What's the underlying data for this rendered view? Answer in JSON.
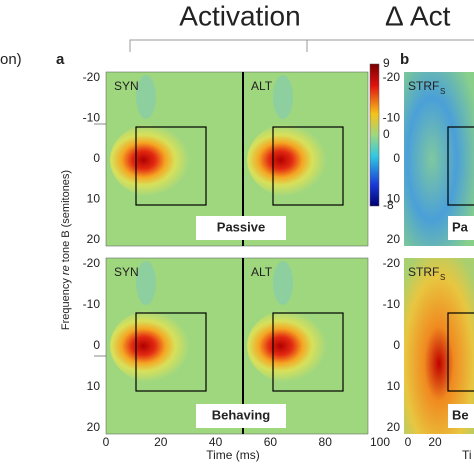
{
  "header": {
    "title": "Activation",
    "title_b": "Δ Act",
    "left_fragment": "on)"
  },
  "panel_a": {
    "label": "a",
    "rows": [
      {
        "condition": "Passive",
        "subpanels": [
          "SYN",
          "ALT"
        ]
      },
      {
        "condition": "Behaving",
        "subpanels": [
          "SYN",
          "ALT"
        ]
      }
    ],
    "y_ticks": [
      "-20",
      "-10",
      "0",
      "10",
      "20"
    ],
    "y_title": {
      "before": "Frequency ",
      "italic": "re",
      "after": " tone B (semitones)"
    },
    "x_ticks": [
      "0",
      "20",
      "40",
      "60",
      "80",
      "100"
    ],
    "x_title": "Time (ms)",
    "colorbar_ticks": [
      "9",
      "0",
      "-8"
    ]
  },
  "panel_b": {
    "label": "b",
    "strf": "STRF",
    "strf_sub": "S",
    "rows": [
      "Pa",
      "Be"
    ],
    "y_ticks": [
      "-20",
      "-10",
      "0",
      "10",
      "20"
    ],
    "x_ticks": [
      "0",
      "20"
    ],
    "x_title": "Ti"
  }
}
